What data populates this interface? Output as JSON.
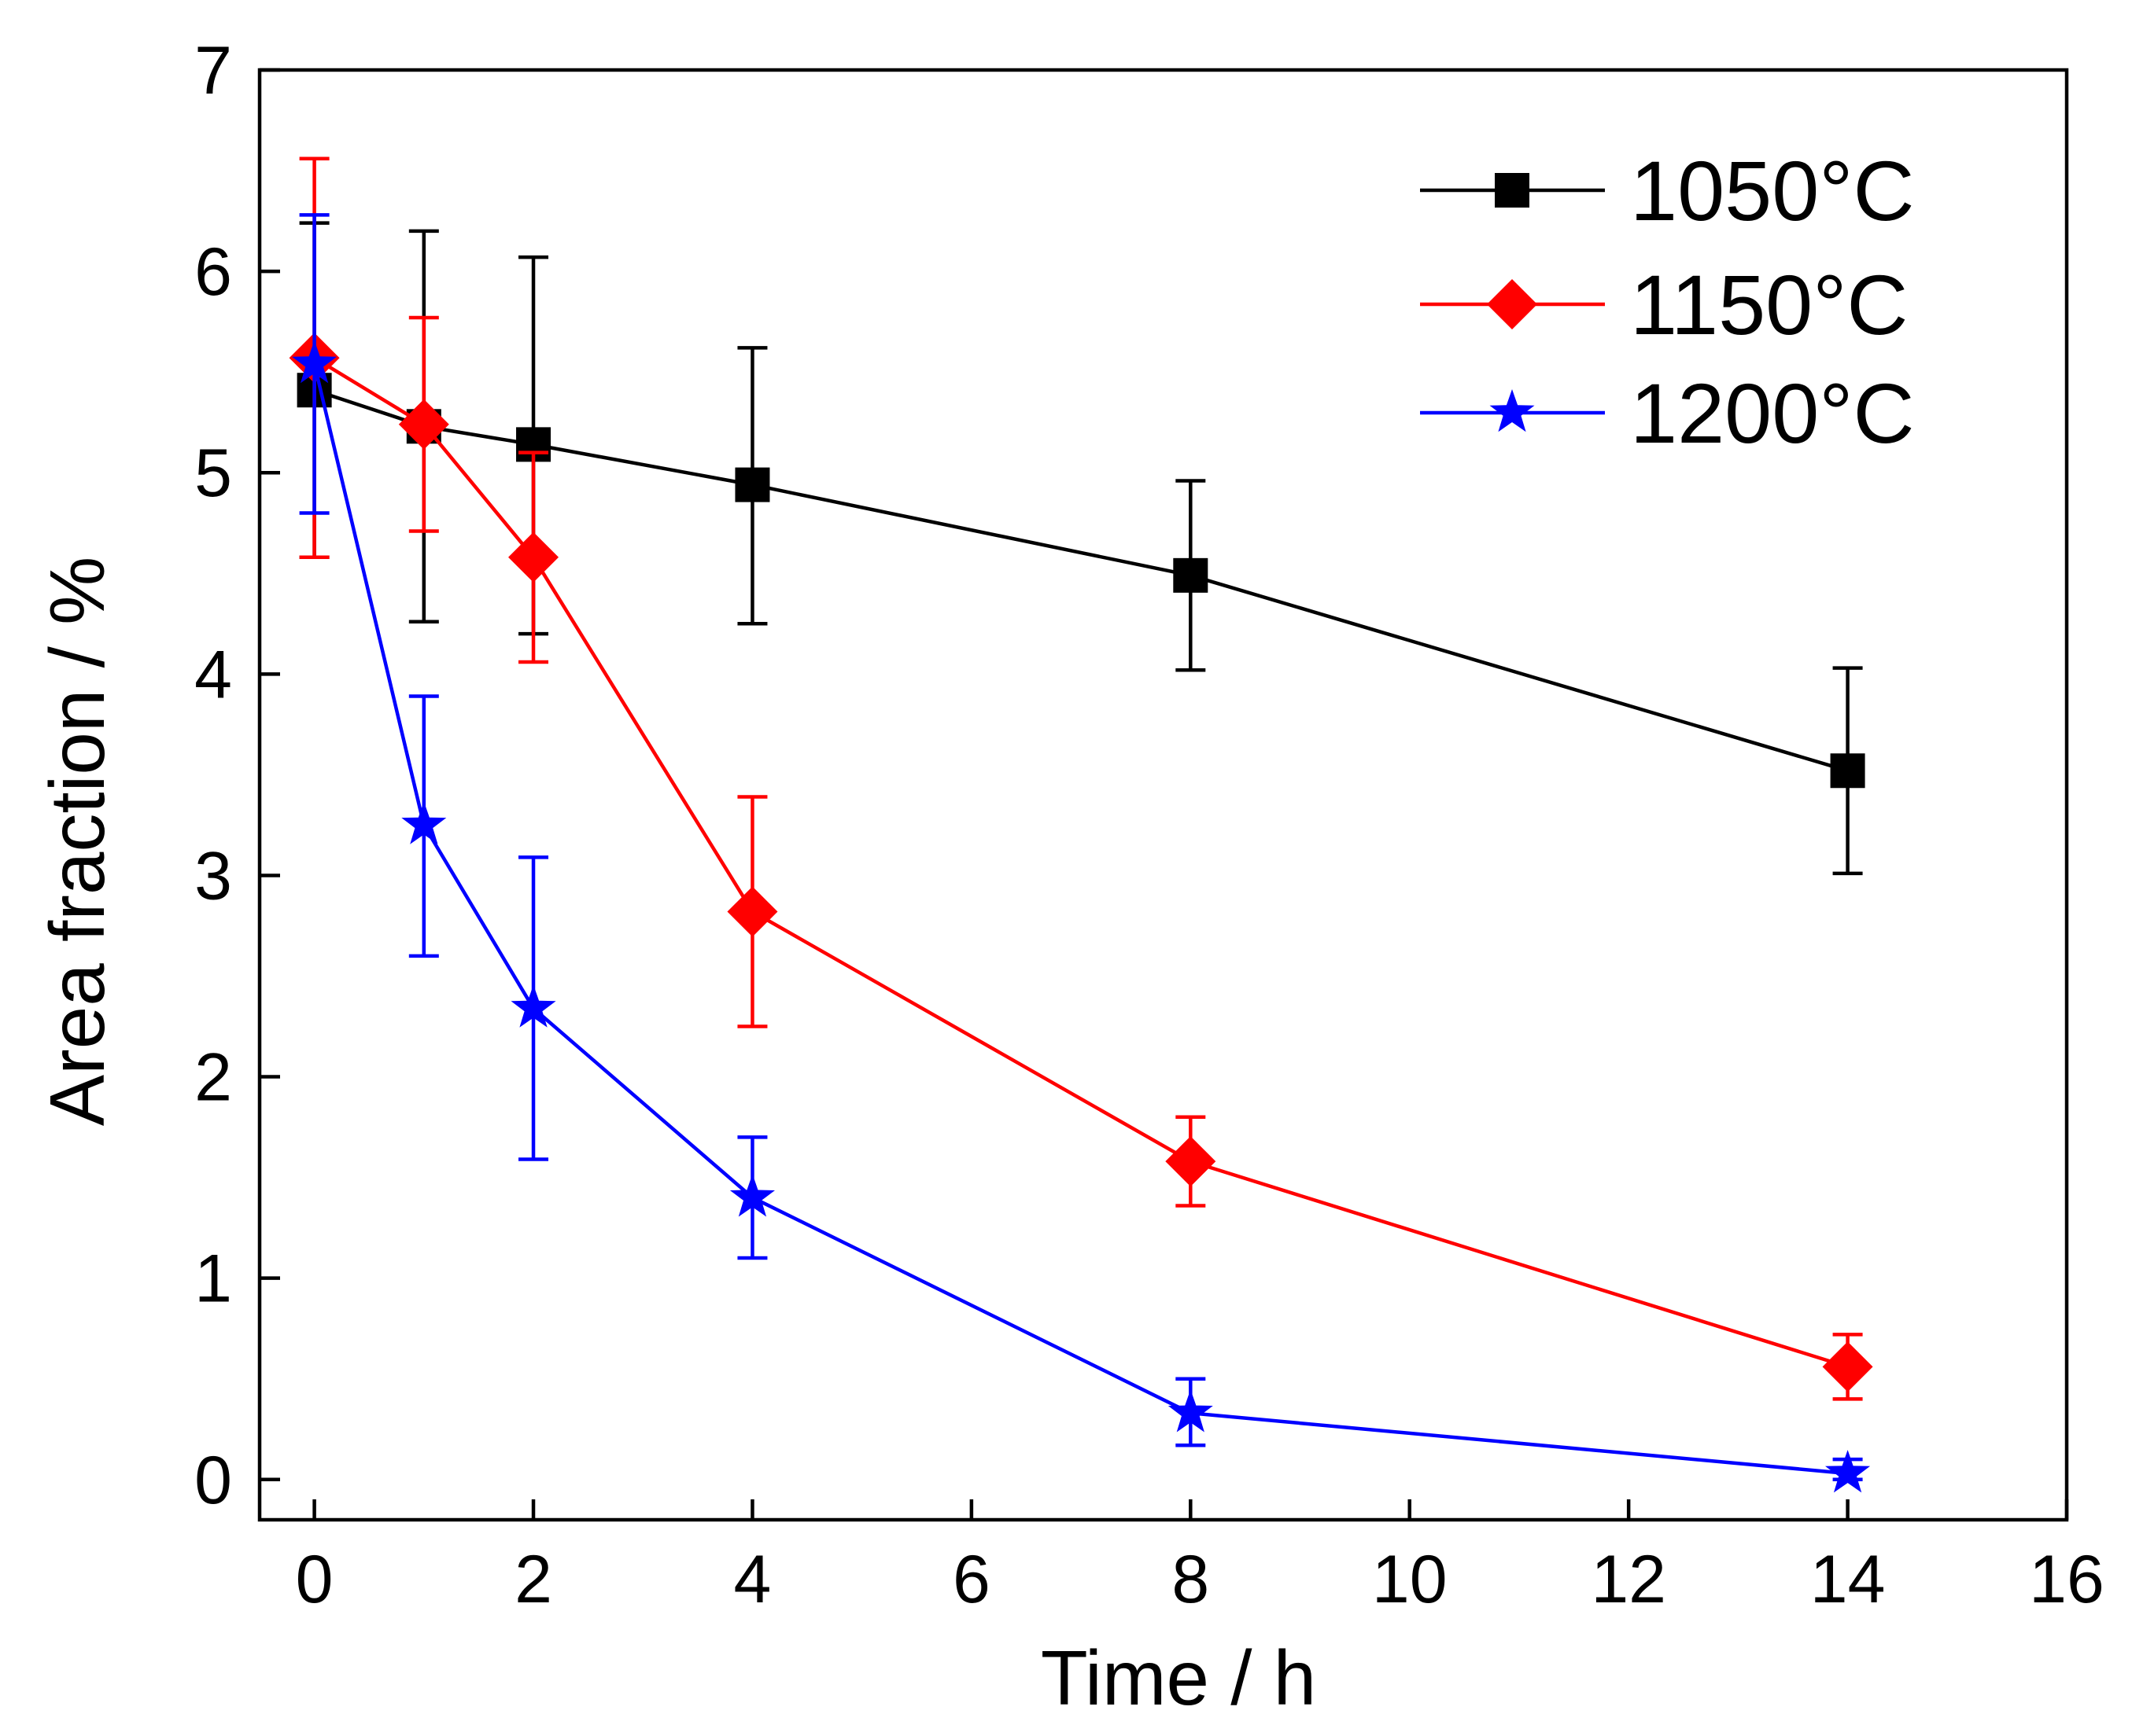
{
  "chart_data": {
    "type": "line",
    "title": "",
    "xlabel": "Time / h",
    "ylabel": "Area fraction / %",
    "xlim": [
      -0.5,
      16
    ],
    "ylim": [
      -0.2,
      7
    ],
    "xticks": [
      0,
      2,
      4,
      6,
      8,
      10,
      12,
      14,
      16
    ],
    "yticks": [
      0,
      1,
      2,
      3,
      4,
      5,
      6,
      7
    ],
    "grid": false,
    "legend_position": "top-right",
    "series": [
      {
        "name": "1050°C",
        "color": "#000000",
        "marker": "square",
        "x": [
          0,
          1,
          2,
          4,
          8,
          14
        ],
        "y": [
          5.41,
          5.23,
          5.14,
          4.94,
          4.49,
          3.52
        ],
        "err_low": [
          4.58,
          4.26,
          4.2,
          4.25,
          4.02,
          3.01
        ],
        "err_high": [
          6.24,
          6.2,
          6.07,
          5.62,
          4.96,
          4.03
        ]
      },
      {
        "name": "1150°C",
        "color": "#ff0000",
        "marker": "diamond",
        "x": [
          0,
          1,
          2,
          4,
          8,
          14
        ],
        "y": [
          5.57,
          5.24,
          4.58,
          2.82,
          1.58,
          0.56
        ],
        "err_low": [
          4.58,
          4.71,
          4.06,
          2.25,
          1.36,
          0.4
        ],
        "err_high": [
          6.56,
          5.77,
          5.1,
          3.39,
          1.8,
          0.72
        ]
      },
      {
        "name": "1200°C",
        "color": "#0000ff",
        "marker": "star",
        "x": [
          0,
          1,
          2,
          4,
          8,
          14
        ],
        "y": [
          5.54,
          3.25,
          2.34,
          1.4,
          0.33,
          0.03
        ],
        "err_low": [
          4.8,
          2.6,
          1.59,
          1.1,
          0.17,
          0.0
        ],
        "err_high": [
          6.28,
          3.89,
          3.09,
          1.7,
          0.5,
          0.1
        ]
      }
    ]
  }
}
